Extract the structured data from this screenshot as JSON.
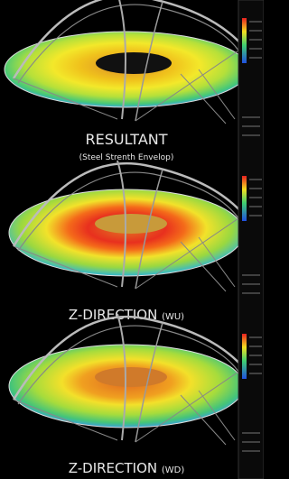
{
  "panels": [
    {
      "title": "RESULTANT",
      "subtitle": "(Steel Strenth Envelop)"
    },
    {
      "title": "Z-DIRECTION",
      "subtitle": "(WU)"
    },
    {
      "title": "Z-DIRECTION",
      "subtitle": "(WD)"
    }
  ]
}
